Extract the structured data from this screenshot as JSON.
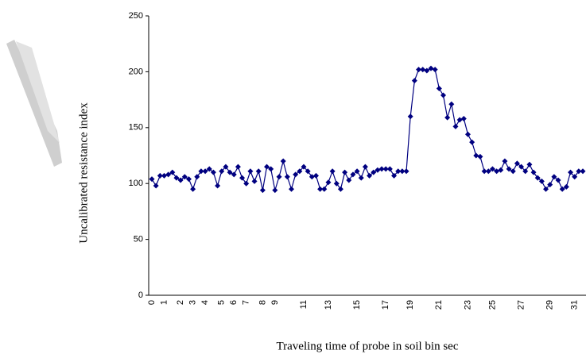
{
  "chart_data": {
    "type": "line",
    "y_label": "Uncalibrated resistance index",
    "x_label": "Traveling time of probe in soil bin sec",
    "categories": [
      "0",
      null,
      null,
      "1",
      null,
      null,
      null,
      "2",
      null,
      null,
      "3",
      null,
      null,
      "4",
      null,
      null,
      null,
      "5",
      null,
      null,
      "6",
      null,
      null,
      "7",
      null,
      null,
      null,
      "8",
      null,
      null,
      "9",
      null,
      null,
      null,
      null,
      null,
      null,
      "11",
      null,
      null,
      null,
      null,
      null,
      "13",
      null,
      null,
      null,
      null,
      null,
      null,
      "15",
      null,
      null,
      null,
      null,
      null,
      null,
      "17",
      null,
      null,
      null,
      null,
      null,
      "19",
      null,
      null,
      null,
      null,
      null,
      null,
      "21",
      null,
      null,
      null,
      null,
      null,
      null,
      "23",
      null,
      null,
      null,
      null,
      null,
      "25",
      null,
      null,
      null,
      null,
      null,
      null,
      "27",
      null,
      null,
      null,
      null,
      null,
      null,
      "29",
      null,
      null,
      null,
      null,
      null,
      "31",
      null,
      null
    ],
    "series": [
      {
        "color": "#000080",
        "marker": "diamond",
        "values": [
          104,
          98,
          107,
          107,
          108,
          110,
          105,
          103,
          106,
          104,
          95,
          106,
          111,
          111,
          113,
          110,
          98,
          111,
          115,
          110,
          108,
          115,
          105,
          100,
          111,
          102,
          111,
          94,
          115,
          113,
          94,
          106,
          120,
          106,
          95,
          108,
          111,
          115,
          111,
          106,
          107,
          95,
          95,
          101,
          111,
          100,
          95,
          110,
          103,
          108,
          111,
          105,
          115,
          107,
          110,
          112,
          113,
          113,
          113,
          107,
          111,
          111,
          111,
          160,
          192,
          202,
          202,
          201,
          203,
          202,
          185,
          179,
          159,
          171,
          151,
          157,
          158,
          144,
          137,
          125,
          124,
          111,
          111,
          113,
          111,
          112,
          120,
          113,
          111,
          118,
          115,
          111,
          117,
          110,
          105,
          102,
          95,
          99,
          106,
          103,
          95,
          97,
          110,
          106,
          111,
          111
        ]
      }
    ],
    "ylim": [
      0,
      250
    ],
    "yticks": [
      0,
      50,
      100,
      150,
      200,
      250
    ],
    "grid": false
  }
}
